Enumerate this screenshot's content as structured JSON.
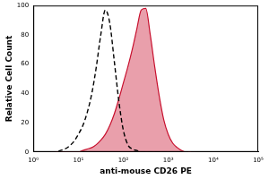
{
  "chart_data": {
    "type": "line",
    "x_label": "anti-mouse CD26 PE",
    "y_label": "Relative Cell Count",
    "log": "x",
    "grid": false,
    "x": [
      2.5,
      3.2,
      4,
      5,
      6.3,
      7.9,
      10,
      12.6,
      15.8,
      20,
      25.1,
      31.6,
      39.8,
      50.1,
      63.1,
      79.4,
      100,
      126,
      158,
      200,
      251,
      316,
      398,
      501,
      631,
      794,
      1000,
      1259,
      1585,
      1995,
      2512,
      3162,
      3981
    ],
    "series": [
      {
        "type": "line",
        "color": "#000000",
        "line_style": "dashed",
        "marker": "none",
        "values": [
          0,
          0,
          1,
          2,
          4,
          7,
          12,
          18,
          27,
          40,
          58,
          80,
          97,
          88,
          62,
          35,
          15,
          5,
          2,
          1,
          0,
          0,
          0,
          0,
          0,
          0,
          0,
          0,
          0,
          0,
          0,
          0,
          0
        ]
      },
      {
        "type": "area",
        "color": "#c8102e",
        "line_style": "solid",
        "marker": "none",
        "values": [
          0,
          0,
          0,
          0,
          0,
          0,
          0,
          1,
          2,
          3,
          5,
          8,
          12,
          18,
          26,
          36,
          47,
          58,
          70,
          84,
          97,
          98,
          80,
          58,
          38,
          22,
          12,
          6,
          3,
          1,
          0,
          0,
          0
        ]
      }
    ],
    "xlim": [
      1,
      100000
    ],
    "xticks": [
      {
        "value": 1,
        "label": "10⁰"
      },
      {
        "value": 10,
        "label": "10¹"
      },
      {
        "value": 100,
        "label": "10²"
      },
      {
        "value": 1000,
        "label": "10³"
      },
      {
        "value": 10000,
        "label": "10⁴"
      },
      {
        "value": 100000,
        "label": "10⁵"
      }
    ],
    "ylim": [
      0,
      100
    ],
    "yticks": [
      0,
      20,
      40,
      60,
      80,
      100
    ]
  }
}
